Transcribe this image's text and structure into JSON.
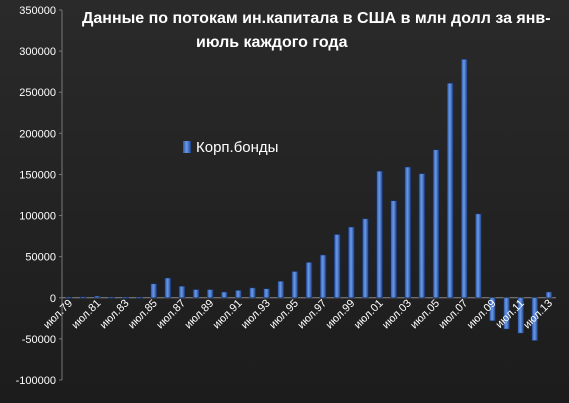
{
  "chart_data": {
    "type": "bar",
    "title_lines": [
      "Данные по потокам ин.капитала в США в млн долл за янв-",
      "июль каждого года"
    ],
    "xlabel": "",
    "ylabel": "",
    "ylim": [
      -100000,
      350000
    ],
    "yticks": [
      -100000,
      -50000,
      0,
      50000,
      100000,
      150000,
      200000,
      250000,
      300000,
      350000
    ],
    "ytick_labels": [
      "-100000",
      "-50000",
      "0",
      "50000",
      "100000",
      "150000",
      "200000",
      "250000",
      "300000",
      "350000"
    ],
    "categories": [
      "июл.79",
      "июл.80",
      "июл.81",
      "июл.82",
      "июл.83",
      "июл.84",
      "июл.85",
      "июл.86",
      "июл.87",
      "июл.88",
      "июл.89",
      "июл.90",
      "июл.91",
      "июл.92",
      "июл.93",
      "июл.94",
      "июл.95",
      "июл.96",
      "июл.97",
      "июл.98",
      "июл.99",
      "июл.00",
      "июл.01",
      "июл.02",
      "июл.03",
      "июл.04",
      "июл.05",
      "июл.06",
      "июл.07",
      "июл.08",
      "июл.09",
      "июл.10",
      "июл.11",
      "июл.12",
      "июл.13"
    ],
    "tick_labels": [
      "июл.79",
      "июл.81",
      "июл.83",
      "июл.85",
      "июл.87",
      "июл.89",
      "июл.91",
      "июл.93",
      "июл.95",
      "июл.97",
      "июл.99",
      "июл.01",
      "июл.03",
      "июл.05",
      "июл.07",
      "июл.09",
      "июл.11",
      "июл.13"
    ],
    "series": [
      {
        "name": "Корп.бонды",
        "values": [
          500,
          1000,
          2000,
          500,
          500,
          500,
          17000,
          24000,
          14000,
          10000,
          10000,
          7000,
          9000,
          12000,
          11000,
          20000,
          32000,
          43000,
          52000,
          77000,
          86000,
          96000,
          154000,
          118000,
          159000,
          151000,
          180000,
          261000,
          290000,
          102000,
          -28000,
          -38000,
          -43000,
          -52000,
          7000
        ]
      }
    ],
    "legend_position": "top-left inside",
    "grid": false,
    "bar_color": "#3c6fc4"
  }
}
